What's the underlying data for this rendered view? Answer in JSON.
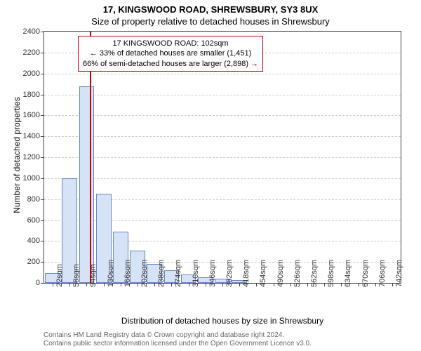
{
  "title_main": "17, KINGSWOOD ROAD, SHREWSBURY, SY3 8UX",
  "title_sub": "Size of property relative to detached houses in Shrewsbury",
  "ylabel": "Number of detached properties",
  "xlabel": "Distribution of detached houses by size in Shrewsbury",
  "ylim": [
    0,
    2400
  ],
  "ytick_step": 200,
  "x_categories": [
    "22sqm",
    "58sqm",
    "94sqm",
    "130sqm",
    "166sqm",
    "202sqm",
    "238sqm",
    "274sqm",
    "310sqm",
    "346sqm",
    "382sqm",
    "418sqm",
    "454sqm",
    "490sqm",
    "526sqm",
    "562sqm",
    "598sqm",
    "634sqm",
    "670sqm",
    "706sqm",
    "742sqm"
  ],
  "values": [
    95,
    1000,
    1880,
    850,
    490,
    310,
    180,
    120,
    80,
    55,
    40,
    30,
    0,
    0,
    0,
    0,
    0,
    0,
    0,
    0,
    0
  ],
  "bar_color": "#d6e2f5",
  "bar_border": "#6a88c0",
  "grid_color": "#cccccc",
  "marker_color": "#cc0000",
  "marker_position": 102,
  "x_start": 22,
  "x_step": 36,
  "annotation": {
    "line1": "17 KINGSWOOD ROAD: 102sqm",
    "line2": "← 33% of detached houses are smaller (1,451)",
    "line3": "66% of semi-detached houses are larger (2,898) →"
  },
  "footer_line1": "Contains HM Land Registry data © Crown copyright and database right 2024.",
  "footer_line2": "Contains public sector information licensed under the Open Government Licence v3.0."
}
